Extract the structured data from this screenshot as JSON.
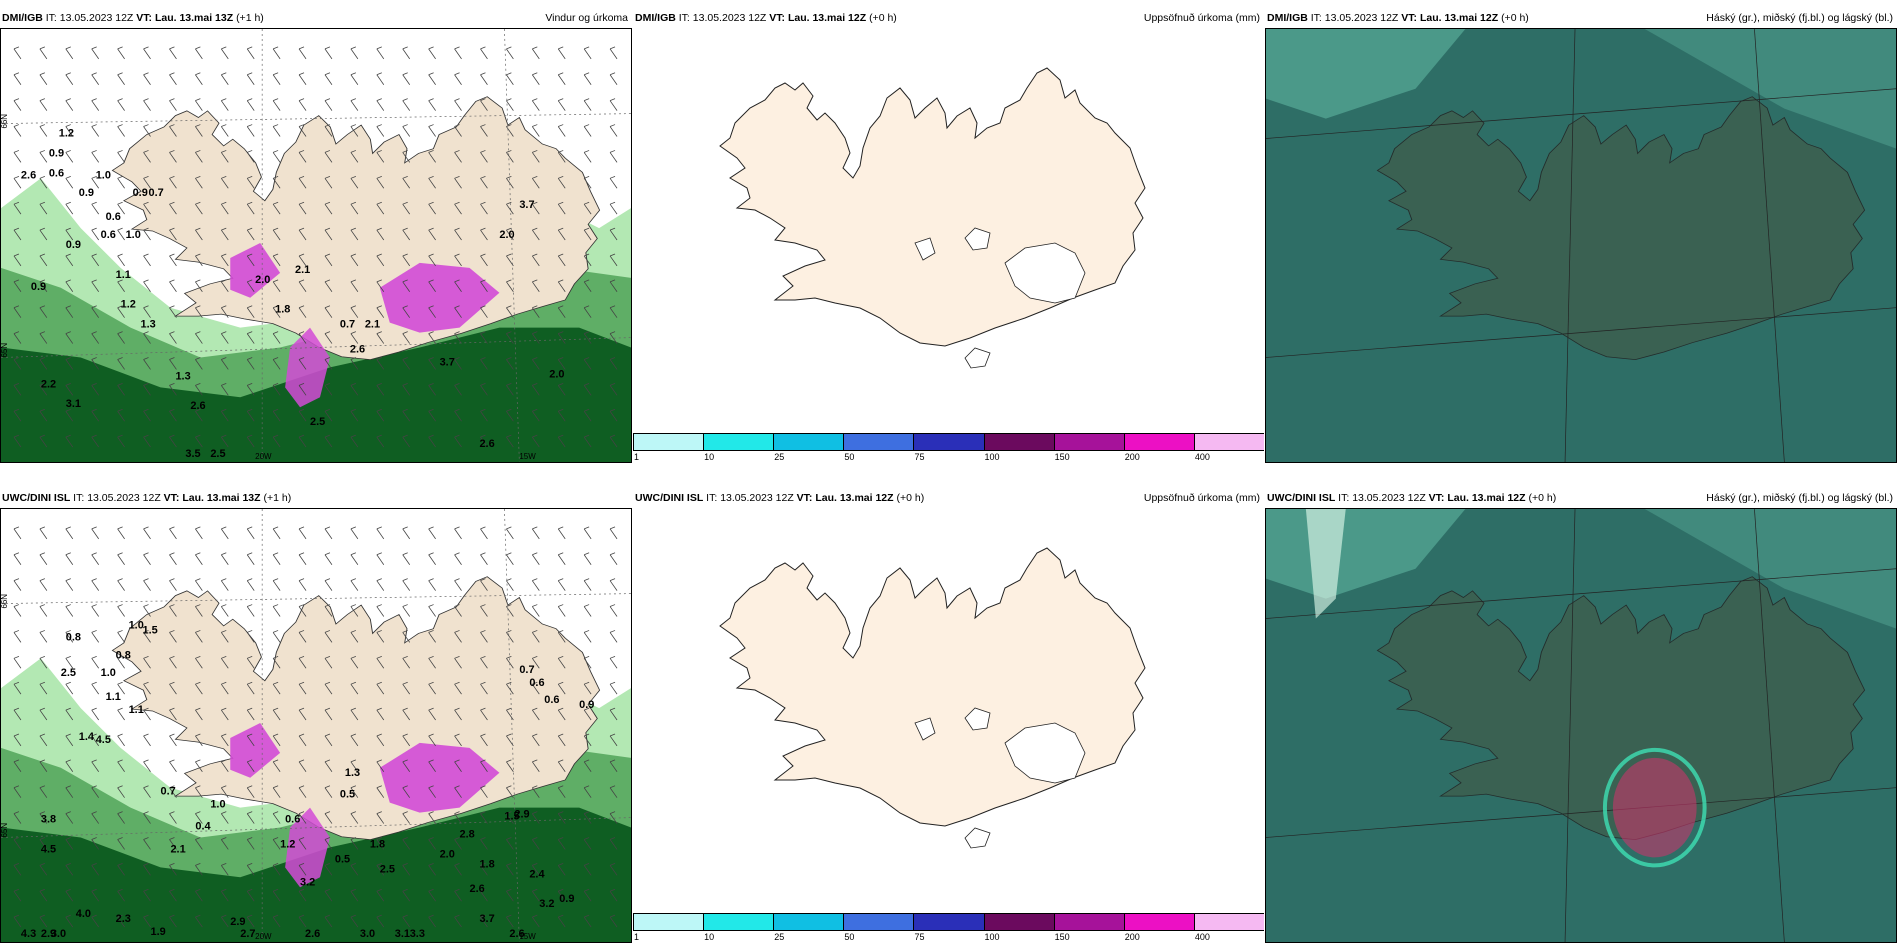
{
  "rows": [
    {
      "wind": {
        "model": "DMI/IGB",
        "it_label": "IT:",
        "it_time": "13.05.2023 12Z",
        "vt_label": "VT:",
        "vt_time": "Lau. 13.mai 13Z",
        "lead": "(+1 h)",
        "field": "Vindur og úrkoma",
        "annotations": [
          "1.2",
          "0.9",
          "0.6",
          "2.6",
          "1.0",
          "0.9",
          "0.9",
          "0.7",
          "0.9",
          "0.6",
          "1.0",
          "1.1",
          "0.9",
          "1.2",
          "1.3",
          "2.0",
          "2.1",
          "1.8",
          "2.1",
          "0.7",
          "2.2",
          "1.3",
          "2.6",
          "2.5",
          "3.1",
          "2.6",
          "3.5",
          "2.5",
          "2.6",
          "3.7",
          "2.0",
          "2.0",
          "3.7",
          "0.6"
        ]
      },
      "precip": {
        "model": "DMI/IGB",
        "it_label": "IT:",
        "it_time": "13.05.2023 12Z",
        "vt_label": "VT:",
        "vt_time": "Lau. 13.mai 12Z",
        "lead": "(+0 h)",
        "field": "Uppsöfnuð úrkoma (mm)"
      },
      "cloud": {
        "model": "DMI/IGB",
        "it_label": "IT:",
        "it_time": "13.05.2023 12Z",
        "vt_label": "VT:",
        "vt_time": "Lau. 13.mai 12Z",
        "lead": "(+0 h)",
        "field": "Háský (gr.), miðský (fj.bl.) og lágský (bl.)"
      }
    },
    {
      "wind": {
        "model": "UWC/DINI ISL",
        "it_label": "IT:",
        "it_time": "13.05.2023 12Z",
        "vt_label": "VT:",
        "vt_time": "Lau. 13.mai 13Z",
        "lead": "(+1 h)",
        "field": "",
        "annotations": [
          "0.8",
          "1.0",
          "1.5",
          "2.5",
          "1.0",
          "0.8",
          "1.1",
          "1.1",
          "1.4",
          "4.5",
          "0.7",
          "0.9",
          "1.3",
          "3.8",
          "4.5",
          "2.1",
          "0.4",
          "1.0",
          "0.6",
          "0.5",
          "1.2",
          "1.8",
          "2.8",
          "2.9",
          "0.5",
          "2.5",
          "2.0",
          "1.8",
          "1.5",
          "2.6",
          "2.4",
          "3.2",
          "3.2",
          "2.9",
          "3.7",
          "2.6",
          "3.0",
          "2.3",
          "1.9",
          "3.0",
          "4.0",
          "2.7",
          "3.1",
          "3.3",
          "2.6",
          "4.3",
          "2.9",
          "0.7",
          "0.6",
          "0.6",
          "0.9"
        ]
      },
      "precip": {
        "model": "UWC/DINI ISL",
        "it_label": "IT:",
        "it_time": "13.05.2023 12Z",
        "vt_label": "VT:",
        "vt_time": "Lau. 13.mai 12Z",
        "lead": "(+0 h)",
        "field": "Uppsöfnuð úrkoma (mm)"
      },
      "cloud": {
        "model": "UWC/DINI ISL",
        "it_label": "IT:",
        "it_time": "13.05.2023 12Z",
        "vt_label": "VT:",
        "vt_time": "Lau. 13.mai 12Z",
        "lead": "(+0 h)",
        "field": "Háský (gr.), miðský (fj.bl.) og lágský (bl.)"
      }
    }
  ],
  "map_labels": {
    "lat_66": "66N",
    "lat_65": "65N",
    "lon_20": "20W",
    "lon_15": "15W"
  },
  "colorbar": {
    "ticks": [
      "1",
      "10",
      "25",
      "50",
      "75",
      "100",
      "150",
      "200",
      "400"
    ],
    "colors": [
      "#bdf7f7",
      "#22e8e8",
      "#10bfe3",
      "#3e6fe0",
      "#2a2fb8",
      "#6b0a5e",
      "#a6129a",
      "#ec10c4",
      "#f5b9f2"
    ]
  },
  "colors": {
    "land": "#fdf0e1",
    "green_light": "#b3e8b3",
    "green_mid": "#5fae66",
    "green_dark": "#0f5e22",
    "magenta": "#d24bd6",
    "cloud_sea": "#2e6e66",
    "cloud_land": "#3d5f4f",
    "cloud_high": "#5fb5a0"
  }
}
